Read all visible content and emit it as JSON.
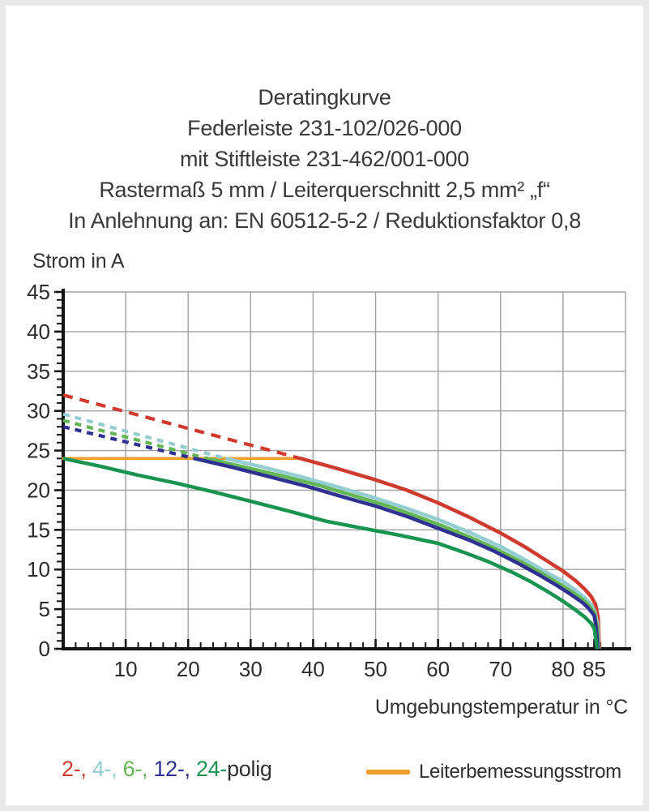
{
  "header": {
    "lines": [
      "Deratingkurve",
      "Federleiste 231-102/026-000",
      "mit Stiftleiste 231-462/001-000",
      "Rastermaß 5 mm / Leiterquerschnitt 2,5 mm² „f“",
      "In Anlehnung an: EN 60512-5-2 / Reduktionsfaktor 0,8"
    ]
  },
  "chart_data": {
    "type": "line",
    "title": "Deratingkurve Federleiste 231-102/026-000 mit Stiftleiste 231-462/001-000",
    "xlabel": "Umgebungstemperatur in °C",
    "ylabel": "Strom in A",
    "xlim": [
      0,
      90
    ],
    "ylim": [
      0,
      45
    ],
    "x_major_ticks": [
      10,
      20,
      30,
      40,
      50,
      60,
      70,
      80,
      85
    ],
    "x_grid_step": 10,
    "x_minor_tick_step": 2,
    "y_tick_step": 5,
    "y_minor_tick_step": 1,
    "grid": true,
    "legend_position": "bottom",
    "colors": {
      "grid": "#a0a0a0",
      "axis": "#141414",
      "tick_label": "#2b2b2b"
    },
    "annotation_line": {
      "label": "Leiterbemessungsstrom",
      "color": "#f09f2e",
      "y": 24,
      "x_start": 0,
      "x_end": 38
    },
    "series": [
      {
        "name": "2-polig",
        "color": "#cf3a2c",
        "dash_style": "12 9",
        "dashed_points": [
          [
            0,
            32
          ],
          [
            38,
            24
          ]
        ],
        "solid_points": [
          [
            38,
            24
          ],
          [
            44,
            22.7
          ],
          [
            50,
            21.3
          ],
          [
            55,
            20
          ],
          [
            60,
            18.4
          ],
          [
            65,
            16.6
          ],
          [
            70,
            14.6
          ],
          [
            74,
            12.8
          ],
          [
            77,
            11.3
          ],
          [
            80,
            9.8
          ],
          [
            82,
            8.6
          ],
          [
            83.5,
            7.5
          ],
          [
            84.5,
            6.6
          ],
          [
            85.2,
            5.6
          ],
          [
            85.6,
            4
          ],
          [
            85.8,
            0
          ]
        ]
      },
      {
        "name": "4-polig",
        "color": "#94cdd2",
        "dash_style": "8 7",
        "dashed_points": [
          [
            0,
            29.6
          ],
          [
            26,
            24
          ]
        ],
        "solid_points": [
          [
            26,
            24
          ],
          [
            32,
            22.9
          ],
          [
            38,
            21.7
          ],
          [
            44,
            20.4
          ],
          [
            50,
            19
          ],
          [
            55,
            17.7
          ],
          [
            60,
            16.3
          ],
          [
            65,
            14.7
          ],
          [
            70,
            12.9
          ],
          [
            74,
            11.2
          ],
          [
            77,
            9.8
          ],
          [
            80,
            8.5
          ],
          [
            82,
            7.4
          ],
          [
            83.5,
            6.4
          ],
          [
            84.5,
            5.6
          ],
          [
            85.1,
            4.7
          ],
          [
            85.5,
            3.2
          ],
          [
            85.72,
            0
          ]
        ]
      },
      {
        "name": "6-polig",
        "color": "#64b554",
        "dash_style": "8 7",
        "dashed_points": [
          [
            0,
            28.8
          ],
          [
            23,
            24
          ]
        ],
        "solid_points": [
          [
            23,
            24
          ],
          [
            29,
            22.9
          ],
          [
            35,
            21.8
          ],
          [
            41,
            20.6
          ],
          [
            47,
            19.2
          ],
          [
            52,
            18
          ],
          [
            57,
            16.6
          ],
          [
            61,
            15.4
          ],
          [
            65,
            14.1
          ],
          [
            69,
            12.7
          ],
          [
            73,
            11.1
          ],
          [
            76,
            9.8
          ],
          [
            79,
            8.4
          ],
          [
            81,
            7.4
          ],
          [
            83,
            6.3
          ],
          [
            84,
            5.6
          ],
          [
            85,
            4.6
          ],
          [
            85.4,
            3
          ],
          [
            85.65,
            0
          ]
        ]
      },
      {
        "name": "12-polig",
        "color": "#2e3192",
        "dash_style": "8 7",
        "dashed_points": [
          [
            0,
            28
          ],
          [
            21,
            24
          ]
        ],
        "solid_points": [
          [
            21,
            24
          ],
          [
            27,
            22.9
          ],
          [
            33,
            21.7
          ],
          [
            39,
            20.5
          ],
          [
            45,
            19.1
          ],
          [
            50,
            18
          ],
          [
            55,
            16.7
          ],
          [
            60,
            15.2
          ],
          [
            65,
            13.7
          ],
          [
            69,
            12.3
          ],
          [
            73,
            10.7
          ],
          [
            76,
            9.4
          ],
          [
            79,
            8
          ],
          [
            81,
            7
          ],
          [
            83,
            5.9
          ],
          [
            84,
            5.2
          ],
          [
            85,
            4.2
          ],
          [
            85.3,
            2.7
          ],
          [
            85.58,
            0
          ]
        ]
      },
      {
        "name": "24-polig",
        "color": "#189350",
        "dash_style": null,
        "dashed_points": [],
        "solid_points": [
          [
            0,
            24
          ],
          [
            6,
            23
          ],
          [
            12,
            21.9
          ],
          [
            18,
            20.9
          ],
          [
            24,
            19.8
          ],
          [
            30,
            18.6
          ],
          [
            36,
            17.4
          ],
          [
            42,
            16.1
          ],
          [
            48,
            15.2
          ],
          [
            54,
            14.3
          ],
          [
            60,
            13.3
          ],
          [
            64,
            12.2
          ],
          [
            68,
            11
          ],
          [
            72,
            9.6
          ],
          [
            75,
            8.4
          ],
          [
            78,
            7
          ],
          [
            80,
            6
          ],
          [
            82,
            4.9
          ],
          [
            83.5,
            4
          ],
          [
            84.5,
            3.2
          ],
          [
            85,
            2.6
          ],
          [
            85.45,
            0
          ]
        ]
      }
    ]
  },
  "legend": {
    "items": [
      {
        "label": "2-,",
        "color": "#cf3a2c"
      },
      {
        "label": "4-,",
        "color": "#94cdd2"
      },
      {
        "label": "6-,",
        "color": "#64b554"
      },
      {
        "label": "12-,",
        "color": "#2e3192"
      },
      {
        "label": "24-",
        "color": "#189350"
      }
    ],
    "suffix": "polig",
    "annotation_label": "Leiterbemessungsstrom"
  }
}
